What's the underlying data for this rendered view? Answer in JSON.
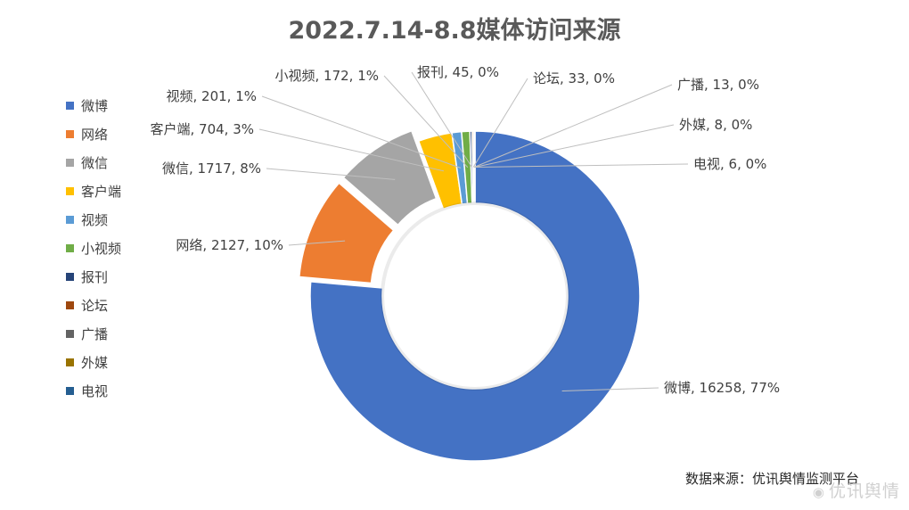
{
  "chart_data": {
    "type": "pie",
    "style": "doughnut",
    "title": "2022.7.14-8.8媒体访问来源",
    "legend_position": "left",
    "categories": [
      "微博",
      "网络",
      "微信",
      "客户端",
      "视频",
      "小视频",
      "报刊",
      "论坛",
      "广播",
      "外媒",
      "电视"
    ],
    "values": [
      16258,
      2127,
      1717,
      704,
      201,
      172,
      45,
      33,
      13,
      8,
      6
    ],
    "percent_labels": [
      "77%",
      "10%",
      "8%",
      "3%",
      "1%",
      "1%",
      "0%",
      "0%",
      "0%",
      "0%",
      "0%"
    ],
    "colors": [
      "#4472C4",
      "#ED7D31",
      "#A5A5A5",
      "#FFC000",
      "#5B9BD5",
      "#70AD47",
      "#264478",
      "#9E480E",
      "#636363",
      "#997300",
      "#255E91"
    ],
    "exploded": [
      "网络",
      "微信"
    ]
  },
  "footer": {
    "source": "数据来源：优讯舆情监测平台"
  },
  "watermark": {
    "text": "优讯舆情"
  }
}
